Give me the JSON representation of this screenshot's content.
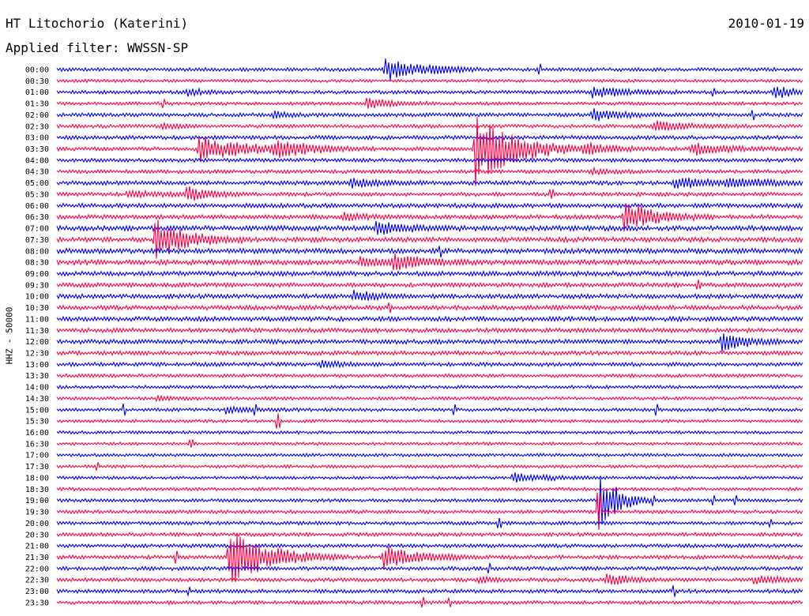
{
  "header": {
    "station": "HT Litochorio (Katerini)",
    "date": "2010-01-19",
    "filter": "Applied filter: WWSSN-SP",
    "channel": "HHZ - 50000"
  },
  "colors": {
    "even_trace": "#0000ff",
    "odd_trace": "#ff0044",
    "background": "#ffffff",
    "text": "#000000"
  },
  "chart_data": {
    "type": "line",
    "title": "HT Litochorio (Katerini)",
    "subtitle": "Applied filter: WWSSN-SP",
    "date": "2010-01-19",
    "ylabel": "HHZ - 50000",
    "xlabel": "",
    "trace_interval_minutes": 30,
    "y_tick_labels": [
      "00:00",
      "00:30",
      "01:00",
      "01:30",
      "02:00",
      "02:30",
      "03:00",
      "03:30",
      "04:00",
      "04:30",
      "05:00",
      "05:30",
      "06:00",
      "06:30",
      "07:00",
      "07:30",
      "08:00",
      "08:30",
      "09:00",
      "09:30",
      "10:00",
      "10:30",
      "11:00",
      "11:30",
      "12:00",
      "12:30",
      "13:00",
      "13:30",
      "14:00",
      "14:30",
      "15:00",
      "15:30",
      "16:00",
      "16:30",
      "17:00",
      "17:30",
      "18:00",
      "18:30",
      "19:00",
      "19:30",
      "20:00",
      "20:30",
      "21:00",
      "21:30",
      "22:00",
      "22:30",
      "23:00",
      "23:30"
    ],
    "grid": false,
    "legend": "none",
    "noise_level": [
      1.6,
      1.4,
      1.6,
      1.5,
      1.7,
      1.6,
      1.8,
      1.8,
      1.7,
      1.7,
      1.9,
      1.8,
      2.0,
      2.0,
      2.3,
      2.2,
      2.3,
      2.3,
      2.2,
      2.0,
      2.1,
      2.1,
      2.1,
      2.0,
      2.0,
      1.9,
      1.8,
      1.6,
      1.5,
      1.5,
      1.5,
      1.4,
      1.4,
      1.4,
      1.4,
      1.4,
      1.4,
      1.5,
      1.5,
      1.6,
      1.6,
      1.7,
      1.7,
      1.8,
      1.7,
      1.7,
      1.7,
      1.6
    ],
    "events": [
      {
        "trace": "00:00",
        "minute": 13.2,
        "amplitude": 14,
        "duration": 1.3
      },
      {
        "trace": "00:00",
        "minute": 15.0,
        "amplitude": 4,
        "duration": 0.8
      },
      {
        "trace": "01:00",
        "minute": 5.2,
        "amplitude": 5,
        "duration": 0.7
      },
      {
        "trace": "01:00",
        "minute": 21.5,
        "amplitude": 7,
        "duration": 1.4
      },
      {
        "trace": "01:00",
        "minute": 28.8,
        "amplitude": 8,
        "duration": 0.9
      },
      {
        "trace": "01:30",
        "minute": 12.4,
        "amplitude": 7,
        "duration": 1.0
      },
      {
        "trace": "02:00",
        "minute": 21.5,
        "amplitude": 8,
        "duration": 1.0
      },
      {
        "trace": "02:00",
        "minute": 8.7,
        "amplitude": 4,
        "duration": 0.6
      },
      {
        "trace": "02:30",
        "minute": 24.0,
        "amplitude": 7,
        "duration": 1.3
      },
      {
        "trace": "02:30",
        "minute": 4.2,
        "amplitude": 3,
        "duration": 0.8
      },
      {
        "trace": "03:30",
        "minute": 5.7,
        "amplitude": 17,
        "duration": 1.8
      },
      {
        "trace": "03:30",
        "minute": 8.7,
        "amplitude": 10,
        "duration": 1.4
      },
      {
        "trace": "03:30",
        "minute": 16.8,
        "amplitude": 46,
        "duration": 1.6
      },
      {
        "trace": "03:30",
        "minute": 21.2,
        "amplitude": 7,
        "duration": 1.3
      },
      {
        "trace": "03:30",
        "minute": 25.5,
        "amplitude": 9,
        "duration": 1.2
      },
      {
        "trace": "04:30",
        "minute": 21.5,
        "amplitude": 3,
        "duration": 0.8
      },
      {
        "trace": "05:00",
        "minute": 11.8,
        "amplitude": 6,
        "duration": 1.0
      },
      {
        "trace": "05:00",
        "minute": 24.8,
        "amplitude": 7,
        "duration": 1.6
      },
      {
        "trace": "05:00",
        "minute": 26.9,
        "amplitude": 5,
        "duration": 1.6
      },
      {
        "trace": "05:30",
        "minute": 2.8,
        "amplitude": 4,
        "duration": 1.7
      },
      {
        "trace": "05:30",
        "minute": 5.2,
        "amplitude": 9,
        "duration": 0.8
      },
      {
        "trace": "06:30",
        "minute": 22.8,
        "amplitude": 20,
        "duration": 1.2
      },
      {
        "trace": "06:30",
        "minute": 11.5,
        "amplitude": 4,
        "duration": 1.0
      },
      {
        "trace": "07:00",
        "minute": 12.8,
        "amplitude": 8,
        "duration": 1.2
      },
      {
        "trace": "07:30",
        "minute": 3.9,
        "amplitude": 30,
        "duration": 1.2
      },
      {
        "trace": "08:30",
        "minute": 12.2,
        "amplitude": 6,
        "duration": 1.3
      },
      {
        "trace": "08:30",
        "minute": 13.5,
        "amplitude": 9,
        "duration": 1.2
      },
      {
        "trace": "10:00",
        "minute": 11.9,
        "amplitude": 8,
        "duration": 0.8
      },
      {
        "trace": "12:00",
        "minute": 26.7,
        "amplitude": 13,
        "duration": 0.9
      },
      {
        "trace": "13:00",
        "minute": 10.6,
        "amplitude": 4,
        "duration": 0.8
      },
      {
        "trace": "14:30",
        "minute": 4.0,
        "amplitude": 4,
        "duration": 0.6
      },
      {
        "trace": "15:00",
        "minute": 6.8,
        "amplitude": 4,
        "duration": 1.0
      },
      {
        "trace": "18:00",
        "minute": 18.3,
        "amplitude": 6,
        "duration": 1.3
      },
      {
        "trace": "19:00",
        "minute": 21.8,
        "amplitude": 45,
        "duration": 0.7
      },
      {
        "trace": "21:30",
        "minute": 6.9,
        "amplitude": 35,
        "duration": 1.6
      },
      {
        "trace": "21:30",
        "minute": 13.1,
        "amplitude": 16,
        "duration": 1.3
      },
      {
        "trace": "22:30",
        "minute": 16.9,
        "amplitude": 3,
        "duration": 0.9
      },
      {
        "trace": "22:30",
        "minute": 22.1,
        "amplitude": 8,
        "duration": 0.9
      },
      {
        "trace": "22:30",
        "minute": 28.0,
        "amplitude": 7,
        "duration": 0.9
      }
    ],
    "spikes": [
      {
        "trace": "00:00",
        "minute": 19.4,
        "amplitude": 5
      },
      {
        "trace": "01:00",
        "minute": 26.4,
        "amplitude": 4
      },
      {
        "trace": "01:30",
        "minute": 4.3,
        "amplitude": 4
      },
      {
        "trace": "02:00",
        "minute": 28.0,
        "amplitude": 5
      },
      {
        "trace": "05:30",
        "minute": 19.9,
        "amplitude": 4
      },
      {
        "trace": "08:00",
        "minute": 15.4,
        "amplitude": 5
      },
      {
        "trace": "09:30",
        "minute": 25.8,
        "amplitude": 4
      },
      {
        "trace": "10:30",
        "minute": 13.4,
        "amplitude": 4
      },
      {
        "trace": "15:00",
        "minute": 2.7,
        "amplitude": 6
      },
      {
        "trace": "15:00",
        "minute": 8.0,
        "amplitude": 5
      },
      {
        "trace": "15:00",
        "minute": 16.0,
        "amplitude": 6
      },
      {
        "trace": "15:00",
        "minute": 24.1,
        "amplitude": 6
      },
      {
        "trace": "15:30",
        "minute": 8.9,
        "amplitude": 8
      },
      {
        "trace": "16:30",
        "minute": 5.4,
        "amplitude": 4
      },
      {
        "trace": "17:30",
        "minute": 1.6,
        "amplitude": 4
      },
      {
        "trace": "19:00",
        "minute": 24.0,
        "amplitude": 5
      },
      {
        "trace": "19:00",
        "minute": 26.4,
        "amplitude": 5
      },
      {
        "trace": "19:00",
        "minute": 27.3,
        "amplitude": 5
      },
      {
        "trace": "19:30",
        "minute": 21.8,
        "amplitude": 22
      },
      {
        "trace": "20:00",
        "minute": 17.8,
        "amplitude": 5
      },
      {
        "trace": "20:00",
        "minute": 28.7,
        "amplitude": 4
      },
      {
        "trace": "21:30",
        "minute": 4.8,
        "amplitude": 6
      },
      {
        "trace": "22:00",
        "minute": 17.4,
        "amplitude": 5
      },
      {
        "trace": "23:00",
        "minute": 5.3,
        "amplitude": 4
      },
      {
        "trace": "23:00",
        "minute": 24.8,
        "amplitude": 5
      },
      {
        "trace": "23:30",
        "minute": 14.7,
        "amplitude": 5
      },
      {
        "trace": "23:30",
        "minute": 15.8,
        "amplitude": 4
      }
    ]
  }
}
